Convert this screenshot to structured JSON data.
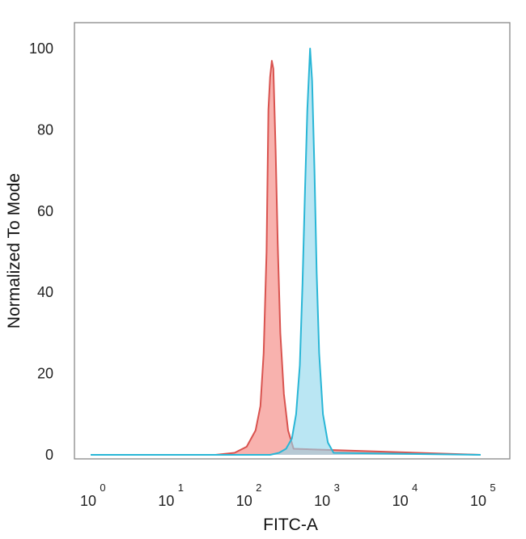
{
  "chart_data": {
    "type": "area",
    "title": "",
    "xlabel": "FITC-A",
    "ylabel": "Normalized To Mode",
    "x_scale": "log",
    "xlim": [
      1,
      100000
    ],
    "ylim": [
      0,
      105
    ],
    "x_ticks": [
      {
        "base": "10",
        "exp": "0",
        "value": 1
      },
      {
        "base": "10",
        "exp": "1",
        "value": 10
      },
      {
        "base": "10",
        "exp": "2",
        "value": 100
      },
      {
        "base": "10",
        "exp": "3",
        "value": 1000
      },
      {
        "base": "10",
        "exp": "4",
        "value": 10000
      },
      {
        "base": "10",
        "exp": "5",
        "value": 100000
      }
    ],
    "y_ticks": [
      0,
      20,
      40,
      60,
      80,
      100
    ],
    "grid": false,
    "legend": "none",
    "series": [
      {
        "color": "#d9534f",
        "fill": "#f4827c",
        "x": [
          1,
          40,
          70,
          100,
          130,
          150,
          165,
          180,
          190,
          200,
          210,
          220,
          235,
          250,
          270,
          300,
          340,
          400,
          100000
        ],
        "y": [
          0,
          0,
          0.5,
          2,
          6,
          12,
          25,
          50,
          85,
          93,
          97,
          95,
          75,
          52,
          30,
          15,
          6,
          1.5,
          0
        ]
      },
      {
        "color": "#29b6d6",
        "fill": "#8fd6ec",
        "x": [
          1,
          200,
          260,
          320,
          380,
          430,
          480,
          520,
          560,
          600,
          650,
          690,
          740,
          790,
          850,
          950,
          1100,
          1300,
          100000
        ],
        "y": [
          0,
          0,
          0.5,
          1.5,
          4,
          10,
          22,
          42,
          65,
          85,
          100,
          92,
          70,
          45,
          25,
          10,
          3,
          0.5,
          0
        ]
      }
    ]
  }
}
